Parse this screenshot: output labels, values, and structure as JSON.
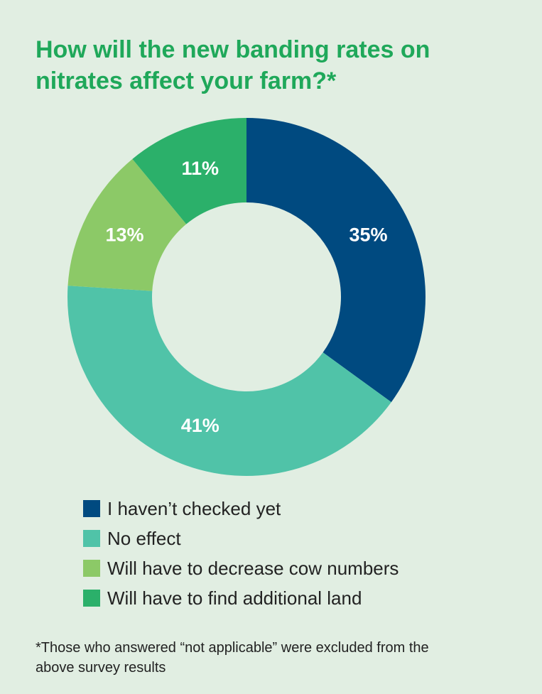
{
  "title_lines": [
    "How will the new banding rates on",
    "nitrates affect your farm?*"
  ],
  "footnote_lines": [
    "*Those who answered “not applicable” were excluded from the",
    "above survey results"
  ],
  "chart_data": {
    "type": "pie",
    "donut": true,
    "title": "How will the new banding rates on nitrates affect your farm?*",
    "legend_position": "bottom-left",
    "slices": [
      {
        "label": "I haven’t checked yet",
        "value": 35,
        "value_label": "35%",
        "color": "#004a80"
      },
      {
        "label": "No effect",
        "value": 41,
        "value_label": "41%",
        "color": "#50c3a8"
      },
      {
        "label": "Will have to decrease cow numbers",
        "value": 13,
        "value_label": "13%",
        "color": "#8cc967"
      },
      {
        "label": "Will have to find additional land",
        "value": 11,
        "value_label": "11%",
        "color": "#2bb06a"
      }
    ]
  }
}
